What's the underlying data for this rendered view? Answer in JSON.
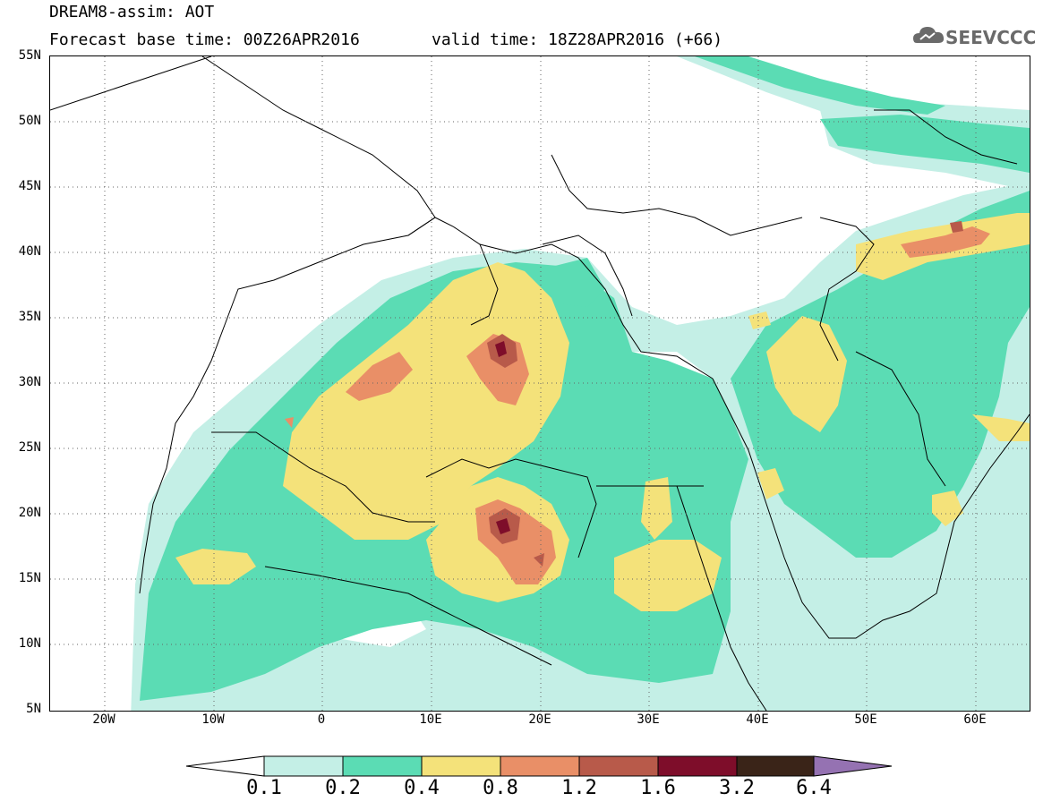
{
  "header": {
    "line1": "DREAM8-assim: AOT",
    "line2": "Forecast base time: 00Z26APR2016",
    "line2b": "valid time: 18Z28APR2016 (+66)",
    "logo_text": "SEEVCCC"
  },
  "axes": {
    "lat_labels": [
      "55N",
      "50N",
      "45N",
      "40N",
      "35N",
      "30N",
      "25N",
      "20N",
      "15N",
      "10N",
      "5N"
    ],
    "lon_labels": [
      "20W",
      "10W",
      "0",
      "10E",
      "20E",
      "30E",
      "40E",
      "50E",
      "60E"
    ]
  },
  "colorbar": {
    "labels": [
      "0.1",
      "0.2",
      "0.4",
      "0.8",
      "1.2",
      "1.6",
      "3.2",
      "6.4"
    ],
    "colors": [
      "#c4efe6",
      "#5bdcb4",
      "#f4e27a",
      "#e98f67",
      "#b85a4a",
      "#7e0d2a",
      "#3a2418",
      "#9572b2"
    ]
  },
  "palette": {
    "c1": "#c4efe6",
    "c2": "#5bdcb4",
    "c3": "#f4e27a",
    "c4": "#e98f67",
    "c5": "#b85a4a",
    "c6": "#7e0d2a"
  }
}
